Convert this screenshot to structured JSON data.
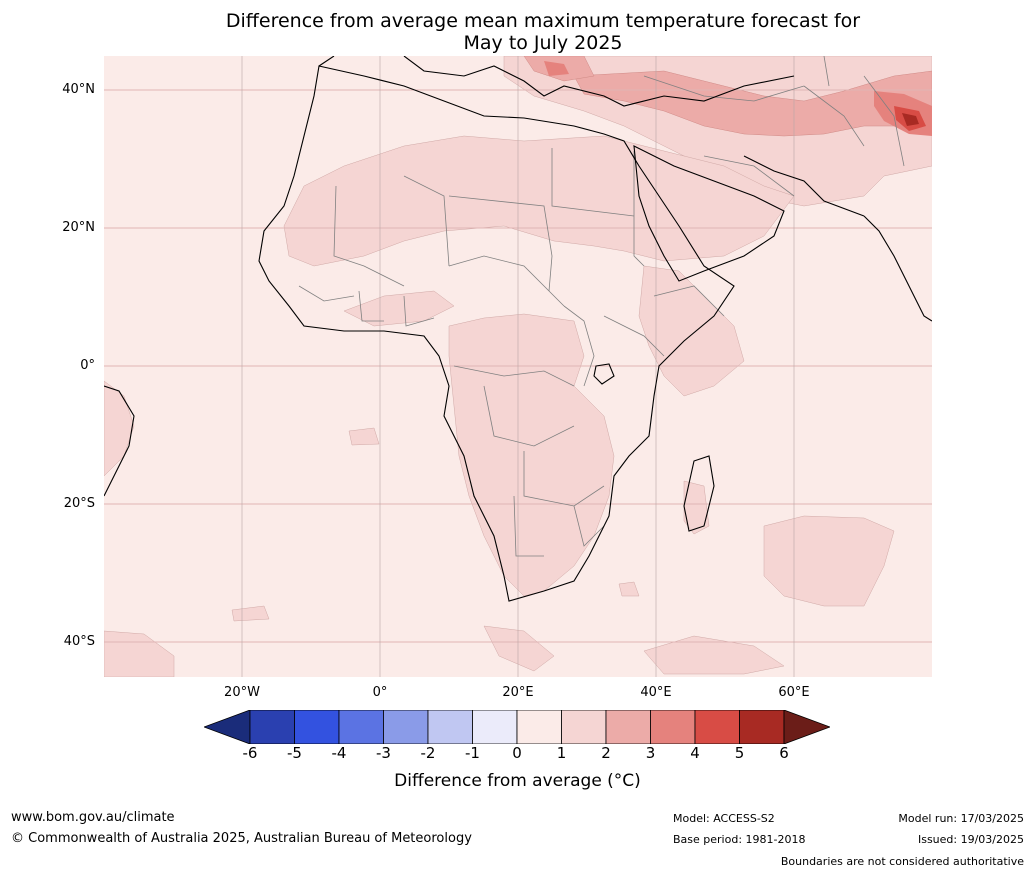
{
  "title": {
    "line1": "Difference from average mean maximum temperature forecast for",
    "line2": "May to July 2025"
  },
  "map": {
    "lat_labels": [
      "40°N",
      "20°N",
      "0°",
      "20°S",
      "40°S"
    ],
    "lon_labels": [
      "20°W",
      "0°",
      "20°E",
      "40°E",
      "60°E"
    ],
    "colors": {
      "background_anomaly_0_1": "#fbebe8",
      "anomaly_1_2": "#f5d5d3",
      "anomaly_2_3": "#ecaba8",
      "anomaly_3_4": "#e5827d",
      "anomaly_4_5": "#d84c45",
      "anomaly_5_6": "#a82a23",
      "below_0": "#ebebfa",
      "coastline": "#000000",
      "borders": "#808080",
      "gridlines": "#e0b5b5"
    }
  },
  "colorbar": {
    "ticks": [
      "-6",
      "-5",
      "-4",
      "-3",
      "-2",
      "-1",
      "0",
      "1",
      "2",
      "3",
      "4",
      "5",
      "6"
    ],
    "colors": [
      "#1a2c7a",
      "#2a40b0",
      "#3352e0",
      "#5b73e3",
      "#8a9be8",
      "#c0c7f2",
      "#ebebfa",
      "#fbebe8",
      "#f5d5d3",
      "#ecaba8",
      "#e5827d",
      "#d84c45",
      "#a82a23",
      "#6b1d18"
    ],
    "label": "Difference from average (°C)"
  },
  "footer": {
    "website": "www.bom.gov.au/climate",
    "copyright": "© Commonwealth of Australia 2025, Australian Bureau of Meteorology",
    "model": "Model: ACCESS-S2",
    "base_period": "Base period: 1981-2018",
    "model_run": "Model run: 17/03/2025",
    "issued": "Issued: 19/03/2025",
    "disclaimer": "Boundaries are not considered authoritative"
  }
}
